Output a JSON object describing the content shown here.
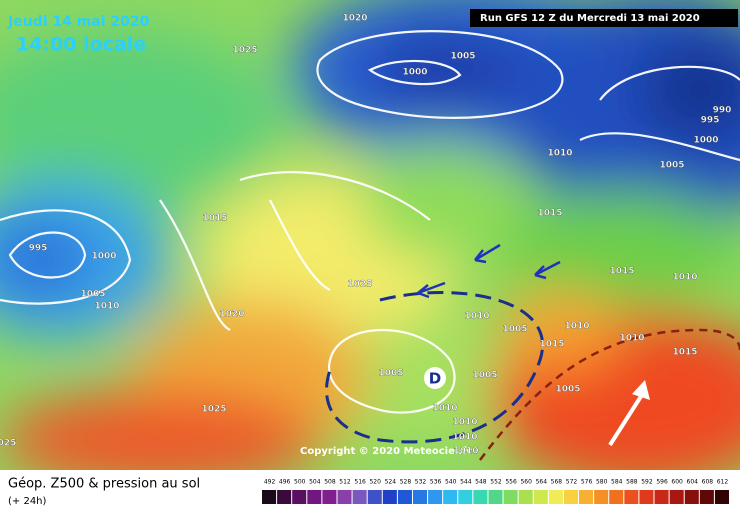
{
  "header": {
    "date": "Jeudi 14 mai 2020",
    "time": "14:00 locale",
    "run": "Run GFS 12 Z du Mercredi 13 mai 2020"
  },
  "map": {
    "isobar_labels": [
      "1020",
      "1025",
      "1000",
      "1005",
      "995",
      "1000",
      "1015",
      "1005",
      "1010",
      "1020",
      "1025",
      "1025",
      "025",
      "1010",
      "1005",
      "995",
      "1000",
      "990",
      "1015",
      "1015",
      "1010",
      "1010",
      "1005",
      "1010",
      "1010",
      "1015",
      "1015",
      "1005",
      "1005",
      "1005",
      "1010",
      "1010",
      "1010",
      "1010"
    ],
    "low_marker": "D",
    "copyright": "Copyright © 2020 Meteociel.fr"
  },
  "legend": {
    "title": "Géop. Z500 & pression au sol",
    "subtitle": "(+ 24h)",
    "scale": [
      "492",
      "496",
      "500",
      "504",
      "508",
      "512",
      "516",
      "520",
      "524",
      "528",
      "532",
      "536",
      "540",
      "544",
      "548",
      "552",
      "556",
      "560",
      "564",
      "568",
      "572",
      "576",
      "580",
      "584",
      "588",
      "592",
      "596",
      "600",
      "604",
      "608",
      "612"
    ]
  }
}
